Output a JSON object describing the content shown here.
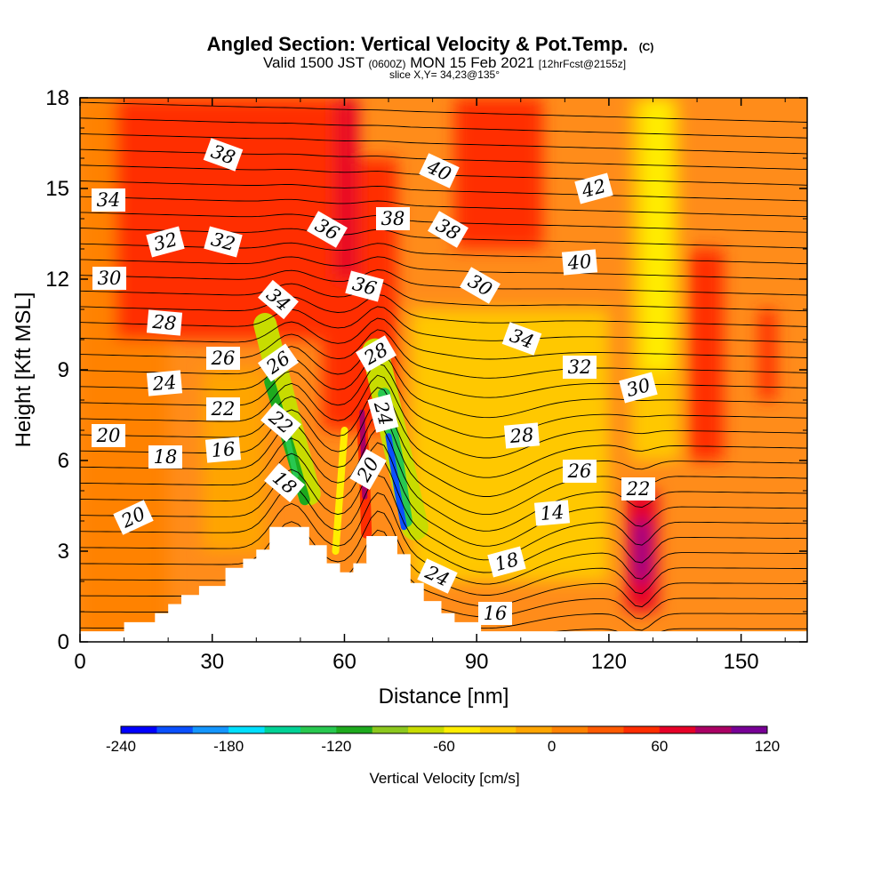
{
  "chart_data": {
    "type": "heatmap",
    "title": "Angled Section: Vertical Velocity & Pot.Temp.",
    "title_unit": "(C)",
    "subtitle_valid": "Valid 1500 JST",
    "subtitle_z": "(0600Z)",
    "subtitle_date": "MON 15 Feb 2021",
    "subtitle_fcst": "[12hrFcst@2155z]",
    "slice_text": "slice X,Y= 34,23@135°",
    "xlabel": "Distance [nm]",
    "ylabel": "Height [Kft MSL]",
    "xlim": [
      0,
      165
    ],
    "ylim": [
      0,
      18
    ],
    "x_ticks": [
      "0",
      "30",
      "60",
      "90",
      "120",
      "150"
    ],
    "y_ticks": [
      "0",
      "3",
      "6",
      "9",
      "12",
      "15",
      "18"
    ],
    "colorbar": {
      "label": "Vertical Velocity [cm/s]",
      "min": -240,
      "max": 120,
      "step": 20,
      "tick_labels": [
        "-240",
        "-180",
        "-120",
        "-60",
        "0",
        "60",
        "120"
      ],
      "colors": [
        "#0000ff",
        "#0a50ff",
        "#1496ff",
        "#00e0ff",
        "#00d296",
        "#28c850",
        "#1eaa1e",
        "#8cc81e",
        "#c8dc00",
        "#ffee00",
        "#ffc800",
        "#ffa500",
        "#ff8200",
        "#ff5a00",
        "#ff2d00",
        "#e60028",
        "#aa0064",
        "#780096"
      ]
    },
    "terrain": [
      [
        0,
        0.35
      ],
      [
        10,
        0.35
      ],
      [
        10,
        0.65
      ],
      [
        17,
        0.65
      ],
      [
        17,
        0.95
      ],
      [
        20,
        0.95
      ],
      [
        20,
        1.25
      ],
      [
        23,
        1.25
      ],
      [
        23,
        1.55
      ],
      [
        27,
        1.55
      ],
      [
        27,
        1.85
      ],
      [
        33,
        1.85
      ],
      [
        33,
        2.45
      ],
      [
        37,
        2.45
      ],
      [
        37,
        2.75
      ],
      [
        40,
        2.75
      ],
      [
        40,
        3.05
      ],
      [
        43,
        3.05
      ],
      [
        43,
        3.8
      ],
      [
        52,
        3.8
      ],
      [
        52,
        3.2
      ],
      [
        56,
        3.2
      ],
      [
        56,
        2.6
      ],
      [
        59,
        2.6
      ],
      [
        59,
        2.3
      ],
      [
        62,
        2.3
      ],
      [
        62,
        2.6
      ],
      [
        65,
        2.6
      ],
      [
        65,
        3.5
      ],
      [
        72,
        3.5
      ],
      [
        72,
        2.9
      ],
      [
        75,
        2.9
      ],
      [
        75,
        1.95
      ],
      [
        78,
        1.95
      ],
      [
        78,
        1.35
      ],
      [
        82,
        1.35
      ],
      [
        82,
        0.95
      ],
      [
        85,
        0.95
      ],
      [
        85,
        0.65
      ],
      [
        91,
        0.65
      ],
      [
        91,
        0.35
      ],
      [
        165,
        0.35
      ]
    ],
    "theta_label_values": [
      "38",
      "40",
      "42",
      "34",
      "32",
      "32",
      "36",
      "38",
      "38",
      "40",
      "30",
      "34",
      "36",
      "30",
      "28",
      "28",
      "26",
      "26",
      "24",
      "34",
      "32",
      "30",
      "24",
      "22",
      "22",
      "28",
      "26",
      "20",
      "20",
      "18",
      "18",
      "16",
      "24",
      "22",
      "14",
      "20",
      "18",
      "16"
    ],
    "vv_cells": [
      {
        "x": [
          0,
          20
        ],
        "y": [
          0,
          18
        ],
        "v": 0
      },
      {
        "x": [
          8,
          58
        ],
        "y": [
          10,
          18
        ],
        "v": 40
      },
      {
        "x": [
          55,
          72
        ],
        "y": [
          7,
          16
        ],
        "v": 50
      },
      {
        "x": [
          58,
          63
        ],
        "y": [
          12,
          18
        ],
        "v": 60
      },
      {
        "x": [
          85,
          105
        ],
        "y": [
          13,
          18
        ],
        "v": 40
      },
      {
        "x": [
          28,
          42
        ],
        "y": [
          3,
          9
        ],
        "v": -20
      },
      {
        "x": [
          75,
          120
        ],
        "y": [
          2,
          11
        ],
        "v": -30
      },
      {
        "x": [
          84,
          112
        ],
        "y": [
          4,
          10
        ],
        "v": -40
      },
      {
        "x": [
          125,
          136
        ],
        "y": [
          6,
          18
        ],
        "v": -40
      },
      {
        "x": [
          128,
          134
        ],
        "y": [
          9,
          18
        ],
        "v": -60
      },
      {
        "x": [
          138,
          146
        ],
        "y": [
          6,
          13
        ],
        "v": 40
      },
      {
        "x": [
          154,
          158
        ],
        "y": [
          8,
          11
        ],
        "v": 40
      },
      {
        "x": [
          124,
          131
        ],
        "y": [
          1,
          5
        ],
        "v": 60
      },
      {
        "x": [
          126,
          129
        ],
        "y": [
          2,
          4
        ],
        "v": 100
      }
    ]
  }
}
